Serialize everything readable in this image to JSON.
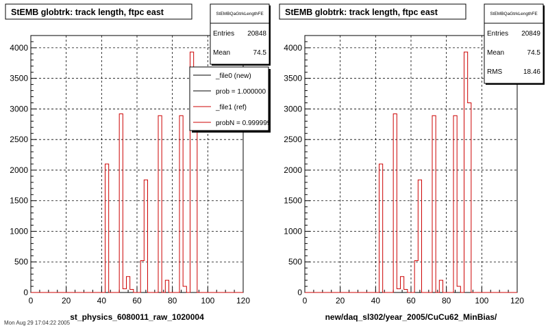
{
  "chart_data": [
    {
      "type": "histogram",
      "title": "StEMB globtrk: track length, ftpc east",
      "xlabel": "st_physics_6080011_raw_1020004",
      "ylabel": "",
      "xlim": [
        0,
        120
      ],
      "ylim": [
        0,
        4200
      ],
      "xticks": [
        0,
        20,
        40,
        60,
        80,
        100,
        120
      ],
      "yticks": [
        0,
        500,
        1000,
        1500,
        2000,
        2500,
        3000,
        3500,
        4000
      ],
      "grid": true,
      "bin_width": 2,
      "series": [
        {
          "name": "_file0 (new)",
          "color": "#000000",
          "x": [
            42,
            44,
            46,
            48,
            50,
            52,
            54,
            56,
            58,
            60,
            62,
            64,
            66,
            68,
            70,
            72,
            74,
            76,
            78,
            80,
            82,
            84,
            86,
            88,
            90,
            92,
            94,
            96,
            98
          ],
          "values": [
            0,
            0,
            0,
            0,
            0,
            0,
            0,
            0,
            0,
            0,
            0,
            0,
            0,
            0,
            0,
            0,
            0,
            0,
            0,
            0,
            0,
            0,
            0,
            0,
            0,
            0,
            0,
            0,
            0
          ]
        },
        {
          "name": "_file1 (ref)",
          "color": "#cc0000",
          "x": [
            42,
            44,
            46,
            48,
            50,
            52,
            54,
            56,
            58,
            60,
            62,
            64,
            66,
            68,
            70,
            72,
            74,
            76,
            78,
            80,
            82,
            84,
            86,
            88,
            90,
            92,
            94,
            96,
            98
          ],
          "values": [
            2100,
            0,
            0,
            0,
            2920,
            60,
            260,
            50,
            0,
            0,
            520,
            1840,
            0,
            0,
            0,
            2890,
            0,
            200,
            0,
            0,
            0,
            2890,
            100,
            0,
            3930,
            3100,
            0,
            0,
            0
          ]
        }
      ],
      "stats": {
        "name": "StEMBQaGtrkLengthFE",
        "rows": [
          {
            "label": "Entries",
            "value": "20848"
          },
          {
            "label": "Mean",
            "value": "74.5"
          }
        ]
      },
      "legend": {
        "placement": "top-right",
        "entries": [
          {
            "label": "_file0 (new)",
            "color": "#000000"
          },
          {
            "label": "prob = 1.000000",
            "color": "#000000"
          },
          {
            "label": "_file1 (ref)",
            "color": "#cc0000"
          },
          {
            "label": "probN = 0.999999",
            "color": "#cc0000"
          }
        ]
      }
    },
    {
      "type": "histogram",
      "title": "StEMB globtrk: track length, ftpc east",
      "xlabel": "new/daq_sl302/year_2005/CuCu62_MinBias/",
      "ylabel": "",
      "xlim": [
        0,
        120
      ],
      "ylim": [
        0,
        4200
      ],
      "xticks": [
        0,
        20,
        40,
        60,
        80,
        100,
        120
      ],
      "yticks": [
        0,
        500,
        1000,
        1500,
        2000,
        2500,
        3000,
        3500,
        4000
      ],
      "grid": true,
      "bin_width": 2,
      "series": [
        {
          "name": "",
          "color": "#cc0000",
          "x": [
            42,
            44,
            46,
            48,
            50,
            52,
            54,
            56,
            58,
            60,
            62,
            64,
            66,
            68,
            70,
            72,
            74,
            76,
            78,
            80,
            82,
            84,
            86,
            88,
            90,
            92,
            94,
            96,
            98
          ],
          "values": [
            2100,
            0,
            0,
            0,
            2920,
            60,
            260,
            50,
            0,
            0,
            520,
            1840,
            0,
            0,
            0,
            2890,
            0,
            200,
            0,
            0,
            0,
            2890,
            100,
            0,
            3930,
            3100,
            0,
            0,
            0
          ]
        }
      ],
      "stats": {
        "name": "StEMBQaGtrkLengthFE",
        "rows": [
          {
            "label": "Entries",
            "value": "20849"
          },
          {
            "label": "Mean",
            "value": "74.5"
          },
          {
            "label": "RMS",
            "value": "18.46"
          }
        ]
      },
      "legend": null
    }
  ],
  "footer": "Mon Aug 29 17:04:22 2005"
}
